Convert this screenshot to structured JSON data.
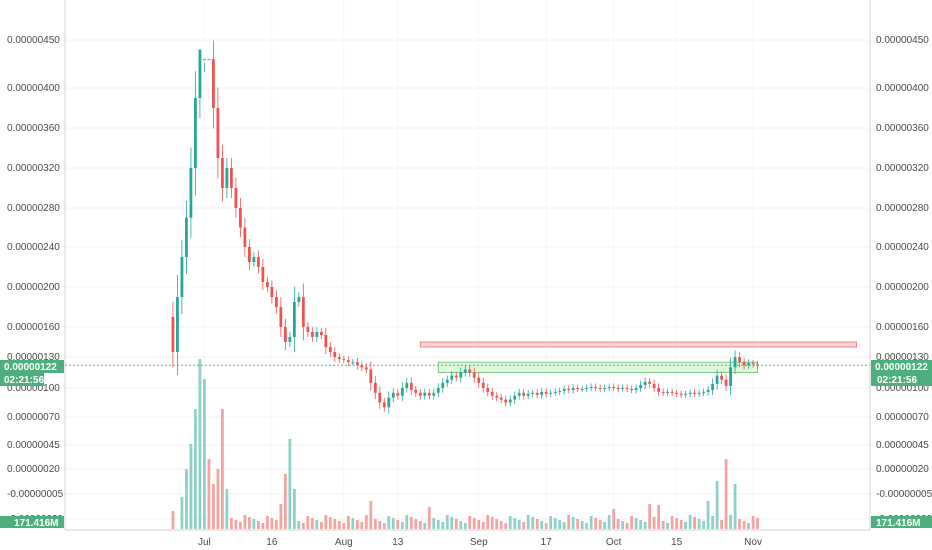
{
  "chart_data": {
    "type": "candlestick",
    "price_axis": {
      "tick_labels": [
        "0.00000450",
        "0.00000400",
        "0.00000360",
        "0.00000320",
        "0.00000280",
        "0.00000240",
        "0.00000200",
        "0.00000160",
        "0.00000130",
        "0.00000100",
        "0.00000070",
        "0.00000045",
        "0.00000020",
        "-0.00000005",
        "-0.00000029"
      ],
      "tick_values": [
        450,
        400,
        360,
        320,
        280,
        240,
        200,
        160,
        130,
        100,
        70,
        45,
        20,
        -5,
        -29
      ],
      "ylim": [
        -39,
        505
      ]
    },
    "time_axis": {
      "tick_labels": [
        "Jul",
        "16",
        "Aug",
        "13",
        "Sep",
        "17",
        "Oct",
        "15",
        "Nov"
      ],
      "tick_days": [
        5,
        20,
        36,
        48,
        66,
        81,
        96,
        110,
        127
      ],
      "xlim": [
        -26,
        153
      ]
    },
    "current_price": {
      "label": "0.00000122",
      "value": 122,
      "countdown": "02:21:56"
    },
    "volume_label": "171.416M",
    "zones": [
      {
        "type": "resistance",
        "low": 140,
        "high": 145,
        "from_day": 53,
        "to_day": 150
      },
      {
        "type": "support",
        "low": 115,
        "high": 125,
        "from_day": 57,
        "to_day": 128
      }
    ],
    "price_path": [
      [
        -3,
        170
      ],
      [
        -2,
        135
      ],
      [
        -1,
        190
      ],
      [
        0,
        230
      ],
      [
        1,
        270
      ],
      [
        2,
        320
      ],
      [
        3,
        390
      ],
      [
        4,
        440
      ],
      [
        5,
        470
      ],
      [
        6,
        430
      ],
      [
        7,
        380
      ],
      [
        8,
        330
      ],
      [
        9,
        300
      ],
      [
        10,
        320
      ],
      [
        11,
        300
      ],
      [
        12,
        280
      ],
      [
        13,
        260
      ],
      [
        14,
        240
      ],
      [
        15,
        225
      ],
      [
        16,
        230
      ],
      [
        17,
        220
      ],
      [
        18,
        205
      ],
      [
        19,
        200
      ],
      [
        20,
        190
      ],
      [
        21,
        180
      ],
      [
        22,
        160
      ],
      [
        23,
        145
      ],
      [
        24,
        150
      ],
      [
        25,
        185
      ],
      [
        26,
        190
      ],
      [
        27,
        160
      ],
      [
        28,
        155
      ],
      [
        29,
        150
      ],
      [
        30,
        155
      ],
      [
        31,
        152
      ],
      [
        32,
        140
      ],
      [
        33,
        135
      ],
      [
        34,
        130
      ],
      [
        35,
        128
      ],
      [
        36,
        127
      ],
      [
        37,
        125
      ],
      [
        38,
        125
      ],
      [
        39,
        122
      ],
      [
        40,
        120
      ],
      [
        41,
        118
      ],
      [
        42,
        105
      ],
      [
        43,
        95
      ],
      [
        44,
        85
      ],
      [
        45,
        80
      ],
      [
        46,
        90
      ],
      [
        47,
        95
      ],
      [
        48,
        92
      ],
      [
        49,
        100
      ],
      [
        50,
        105
      ],
      [
        51,
        98
      ],
      [
        52,
        95
      ],
      [
        53,
        92
      ],
      [
        54,
        95
      ],
      [
        55,
        92
      ],
      [
        56,
        95
      ],
      [
        57,
        100
      ],
      [
        58,
        105
      ],
      [
        59,
        108
      ],
      [
        60,
        112
      ],
      [
        61,
        110
      ],
      [
        62,
        115
      ],
      [
        63,
        118
      ],
      [
        64,
        115
      ],
      [
        65,
        110
      ],
      [
        66,
        105
      ],
      [
        67,
        100
      ],
      [
        68,
        96
      ],
      [
        69,
        92
      ],
      [
        70,
        90
      ],
      [
        71,
        88
      ],
      [
        72,
        85
      ],
      [
        73,
        88
      ],
      [
        74,
        92
      ],
      [
        75,
        95
      ],
      [
        76,
        92
      ],
      [
        77,
        94
      ],
      [
        78,
        95
      ],
      [
        79,
        93
      ],
      [
        80,
        96
      ],
      [
        81,
        94
      ],
      [
        82,
        95
      ],
      [
        83,
        96
      ],
      [
        84,
        97
      ],
      [
        85,
        99
      ],
      [
        86,
        98
      ],
      [
        87,
        100
      ],
      [
        88,
        99
      ],
      [
        89,
        99
      ],
      [
        90,
        100
      ],
      [
        91,
        101
      ],
      [
        92,
        100
      ],
      [
        93,
        99
      ],
      [
        94,
        100
      ],
      [
        95,
        101
      ],
      [
        96,
        100
      ],
      [
        97,
        99
      ],
      [
        98,
        100
      ],
      [
        99,
        99
      ],
      [
        100,
        98
      ],
      [
        101,
        100
      ],
      [
        102,
        103
      ],
      [
        103,
        106
      ],
      [
        104,
        104
      ],
      [
        105,
        100
      ],
      [
        106,
        96
      ],
      [
        107,
        95
      ],
      [
        108,
        96
      ],
      [
        109,
        95
      ],
      [
        110,
        94
      ],
      [
        111,
        93
      ],
      [
        112,
        94
      ],
      [
        113,
        95
      ],
      [
        114,
        94
      ],
      [
        115,
        95
      ],
      [
        116,
        96
      ],
      [
        117,
        98
      ],
      [
        118,
        104
      ],
      [
        119,
        112
      ],
      [
        120,
        108
      ],
      [
        121,
        102
      ],
      [
        122,
        120
      ],
      [
        123,
        130
      ],
      [
        124,
        125
      ],
      [
        125,
        122
      ],
      [
        126,
        124
      ],
      [
        127,
        123
      ],
      [
        128,
        122
      ]
    ],
    "volume_spikes": [
      [
        -2,
        18
      ],
      [
        0,
        32
      ],
      [
        1,
        60
      ],
      [
        2,
        85
      ],
      [
        3,
        120
      ],
      [
        4,
        170
      ],
      [
        5,
        150
      ],
      [
        6,
        70
      ],
      [
        7,
        45
      ],
      [
        8,
        60
      ],
      [
        9,
        120
      ],
      [
        10,
        40
      ],
      [
        22,
        25
      ],
      [
        23,
        55
      ],
      [
        24,
        90
      ],
      [
        25,
        40
      ],
      [
        42,
        28
      ],
      [
        55,
        22
      ],
      [
        96,
        20
      ],
      [
        104,
        25
      ],
      [
        106,
        24
      ],
      [
        117,
        28
      ],
      [
        119,
        48
      ],
      [
        121,
        70
      ],
      [
        123,
        45
      ]
    ],
    "colors": {
      "up": "#26a69a",
      "down": "#ef5350",
      "up_vol": "#8ed1c9",
      "down_vol": "#f5a3a1",
      "price_badge": "#4caf7d",
      "resistance_fill": "#f8c4c4",
      "resistance_edge": "#e57373",
      "support_fill": "#d3f5d0",
      "support_edge": "#66bb6a",
      "grid": "#e6e6e6"
    }
  }
}
